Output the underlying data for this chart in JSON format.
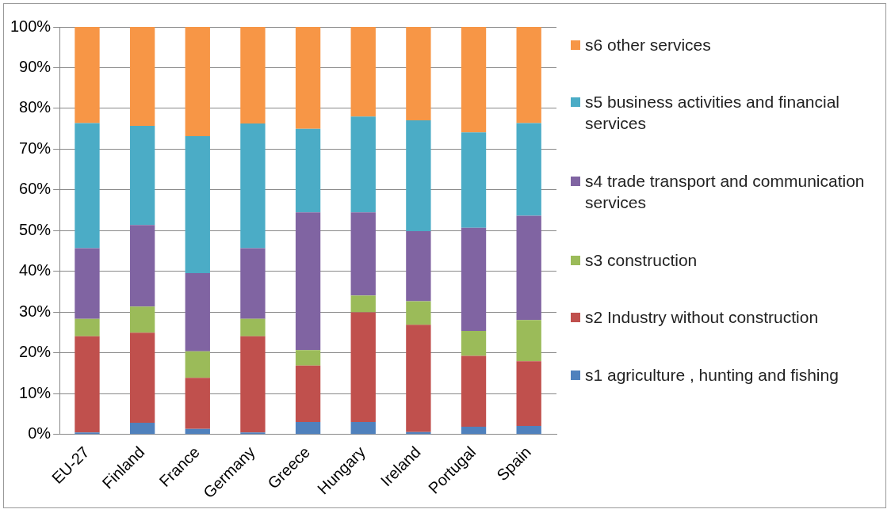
{
  "chart_data": {
    "type": "bar",
    "stacked": true,
    "categories": [
      "EU-27",
      "Finland",
      "France",
      "Germany",
      "Greece",
      "Hungary",
      "Ireland",
      "Portugal",
      "Spain"
    ],
    "series": [
      {
        "name": "s1 agriculture , hunting and fishing",
        "color": "#4f81bd",
        "values": [
          0.5,
          2.9,
          1.4,
          0.5,
          3.1,
          3.1,
          0.6,
          1.9,
          2.1
        ]
      },
      {
        "name": "s2 Industry without construction",
        "color": "#c0504d",
        "values": [
          23.6,
          22.1,
          12.5,
          23.6,
          13.8,
          26.9,
          26.3,
          17.4,
          15.9
        ]
      },
      {
        "name": "s3 construction",
        "color": "#9bbb59",
        "values": [
          4.3,
          6.4,
          6.5,
          4.3,
          3.8,
          4.1,
          5.8,
          6.1,
          10.1
        ]
      },
      {
        "name": "s4 trade transport and communication services",
        "color": "#8064a2",
        "values": [
          17.3,
          20.0,
          19.2,
          17.3,
          33.8,
          20.4,
          17.2,
          25.3,
          25.6
        ]
      },
      {
        "name": "s5 business activities and financial services",
        "color": "#4bacc6",
        "values": [
          30.7,
          24.3,
          33.6,
          30.6,
          20.5,
          23.5,
          27.2,
          23.4,
          22.7
        ]
      },
      {
        "name": "s6 other services",
        "color": "#f79646",
        "values": [
          23.6,
          24.3,
          26.8,
          23.7,
          25.0,
          22.0,
          22.9,
          25.9,
          23.6
        ]
      }
    ],
    "ylim": [
      0,
      100
    ],
    "yticks": [
      {
        "value": 0,
        "label": "0%"
      },
      {
        "value": 10,
        "label": "10%"
      },
      {
        "value": 20,
        "label": "20%"
      },
      {
        "value": 30,
        "label": "30%"
      },
      {
        "value": 40,
        "label": "40%"
      },
      {
        "value": 50,
        "label": "50%"
      },
      {
        "value": 60,
        "label": "60%"
      },
      {
        "value": 70,
        "label": "70%"
      },
      {
        "value": 80,
        "label": "80%"
      },
      {
        "value": 90,
        "label": "90%"
      },
      {
        "value": 100,
        "label": "100%"
      }
    ],
    "grid": "y",
    "legend": "right"
  }
}
